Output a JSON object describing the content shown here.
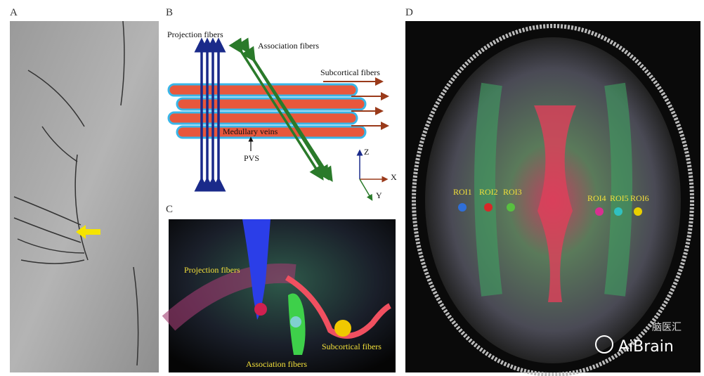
{
  "panels": [
    {
      "label": "A"
    },
    {
      "label": "B",
      "texts": {
        "projection": "Projection fibers",
        "association": "Association fibers",
        "subcortical": "Subcortical fibers",
        "veins": "Medullary veins",
        "pvs": "PVS",
        "z": "Z",
        "x": "X",
        "y": "Y"
      }
    },
    {
      "label": "C",
      "texts": {
        "projection": "Projection fibers",
        "association": "Association fibers",
        "subcortical": "Subcortical fibers"
      }
    },
    {
      "label": "D",
      "rois": [
        "ROI1",
        "ROI2",
        "ROI3",
        "ROI4",
        "ROI5",
        "ROI6"
      ],
      "watermark": {
        "brand": "AiBrain",
        "badge": "脑医汇"
      }
    }
  ]
}
